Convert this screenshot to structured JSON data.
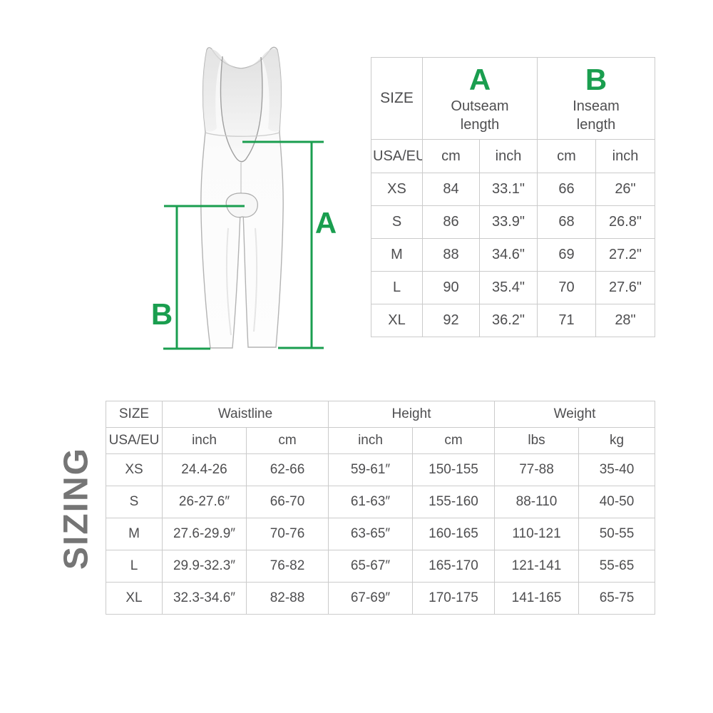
{
  "page": {
    "vertical_title": "SIZING"
  },
  "colors": {
    "accent_green": "#1a9e4f",
    "text_gray": "#4e4e50",
    "border_gray": "#cbcbcb",
    "title_gray": "#757575"
  },
  "diagram": {
    "label_a": "A",
    "label_b": "B"
  },
  "size_table": {
    "header": {
      "size": "SIZE",
      "region": "USA/EU",
      "col_a": {
        "letter": "A",
        "name": "Outseam length"
      },
      "col_b": {
        "letter": "B",
        "name": "Inseam length"
      },
      "units": [
        "cm",
        "inch",
        "cm",
        "inch"
      ]
    },
    "rows": [
      {
        "size": "XS",
        "values": [
          "84",
          "33.1\"",
          "66",
          "26\""
        ]
      },
      {
        "size": "S",
        "values": [
          "86",
          "33.9\"",
          "68",
          "26.8\""
        ]
      },
      {
        "size": "M",
        "values": [
          "88",
          "34.6\"",
          "69",
          "27.2\""
        ]
      },
      {
        "size": "L",
        "values": [
          "90",
          "35.4\"",
          "70",
          "27.6\""
        ]
      },
      {
        "size": "XL",
        "values": [
          "92",
          "36.2\"",
          "71",
          "28\""
        ]
      }
    ]
  },
  "fit_table": {
    "header": {
      "size": "SIZE",
      "region": "USA/EU",
      "groups": [
        {
          "name": "Waistline",
          "units": [
            "inch",
            "cm"
          ]
        },
        {
          "name": "Height",
          "units": [
            "inch",
            "cm"
          ]
        },
        {
          "name": "Weight",
          "units": [
            "lbs",
            "kg"
          ]
        }
      ]
    },
    "rows": [
      {
        "size": "XS",
        "values": [
          "24.4-26",
          "62-66",
          "59-61″",
          "150-155",
          "77-88",
          "35-40"
        ]
      },
      {
        "size": "S",
        "values": [
          "26-27.6″",
          "66-70",
          "61-63″",
          "155-160",
          "88-110",
          "40-50"
        ]
      },
      {
        "size": "M",
        "values": [
          "27.6-29.9″",
          "70-76",
          "63-65″",
          "160-165",
          "110-121",
          "50-55"
        ]
      },
      {
        "size": "L",
        "values": [
          "29.9-32.3″",
          "76-82",
          "65-67″",
          "165-170",
          "121-141",
          "55-65"
        ]
      },
      {
        "size": "XL",
        "values": [
          "32.3-34.6″",
          "82-88",
          "67-69″",
          "170-175",
          "141-165",
          "65-75"
        ]
      }
    ]
  },
  "chart_data": [
    {
      "type": "table",
      "title": "A Outseam length / B Inseam length",
      "columns": [
        "SIZE USA/EU",
        "Outseam cm",
        "Outseam inch",
        "Inseam cm",
        "Inseam inch"
      ],
      "rows": [
        [
          "XS",
          84,
          33.1,
          66,
          26
        ],
        [
          "S",
          86,
          33.9,
          68,
          26.8
        ],
        [
          "M",
          88,
          34.6,
          69,
          27.2
        ],
        [
          "L",
          90,
          35.4,
          70,
          27.6
        ],
        [
          "XL",
          92,
          36.2,
          71,
          28
        ]
      ]
    },
    {
      "type": "table",
      "title": "Sizing — Waistline / Height / Weight",
      "columns": [
        "SIZE USA/EU",
        "Waistline inch",
        "Waistline cm",
        "Height inch",
        "Height cm",
        "Weight lbs",
        "Weight kg"
      ],
      "rows": [
        [
          "XS",
          "24.4-26",
          "62-66",
          "59-61",
          "150-155",
          "77-88",
          "35-40"
        ],
        [
          "S",
          "26-27.6",
          "66-70",
          "61-63",
          "155-160",
          "88-110",
          "40-50"
        ],
        [
          "M",
          "27.6-29.9",
          "70-76",
          "63-65",
          "160-165",
          "110-121",
          "50-55"
        ],
        [
          "L",
          "29.9-32.3",
          "76-82",
          "65-67",
          "165-170",
          "121-141",
          "55-65"
        ],
        [
          "XL",
          "32.3-34.6",
          "82-88",
          "67-69",
          "170-175",
          "141-165",
          "65-75"
        ]
      ]
    }
  ]
}
